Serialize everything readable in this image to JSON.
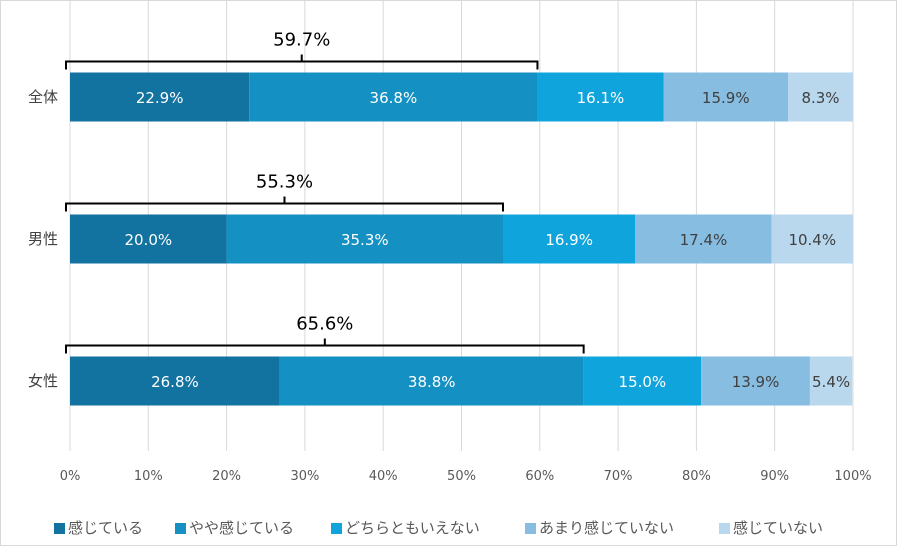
{
  "chart_data": {
    "type": "bar",
    "orientation": "horizontal",
    "stacked": "percent",
    "categories": [
      "全体",
      "男性",
      "女性"
    ],
    "series": [
      {
        "name": "感じている",
        "values": [
          22.9,
          20.0,
          26.8
        ],
        "color": "#1272a0",
        "label_color": "#ffffff"
      },
      {
        "name": "やや感じている",
        "values": [
          36.8,
          35.3,
          38.8
        ],
        "color": "#1590c3",
        "label_color": "#ffffff"
      },
      {
        "name": "どちらともいえない",
        "values": [
          16.1,
          16.9,
          15.0
        ],
        "color": "#10a4dc",
        "label_color": "#ffffff"
      },
      {
        "name": "あまり感じていない",
        "values": [
          15.9,
          17.4,
          13.9
        ],
        "color": "#86bde0",
        "label_color": "#404040"
      },
      {
        "name": "感じていない",
        "values": [
          8.3,
          10.4,
          5.4
        ],
        "color": "#b9d8ee",
        "label_color": "#404040"
      }
    ],
    "data_labels": [
      [
        "22.9%",
        "36.8%",
        "16.1%",
        "15.9%",
        "8.3%"
      ],
      [
        "20.0%",
        "35.3%",
        "16.9%",
        "17.4%",
        "10.4%"
      ],
      [
        "26.8%",
        "38.8%",
        "15.0%",
        "13.9%",
        "5.4%"
      ]
    ],
    "brackets": [
      {
        "category": "全体",
        "value": 59.7,
        "label": "59.7%"
      },
      {
        "category": "男性",
        "value": 55.3,
        "label": "55.3%"
      },
      {
        "category": "女性",
        "value": 65.6,
        "label": "65.6%"
      }
    ],
    "x_ticks": [
      "0%",
      "10%",
      "20%",
      "30%",
      "40%",
      "50%",
      "60%",
      "70%",
      "80%",
      "90%",
      "100%"
    ],
    "xlim": [
      0,
      100
    ],
    "grid": true,
    "legend_position": "bottom",
    "title": "",
    "xlabel": "",
    "ylabel": ""
  }
}
